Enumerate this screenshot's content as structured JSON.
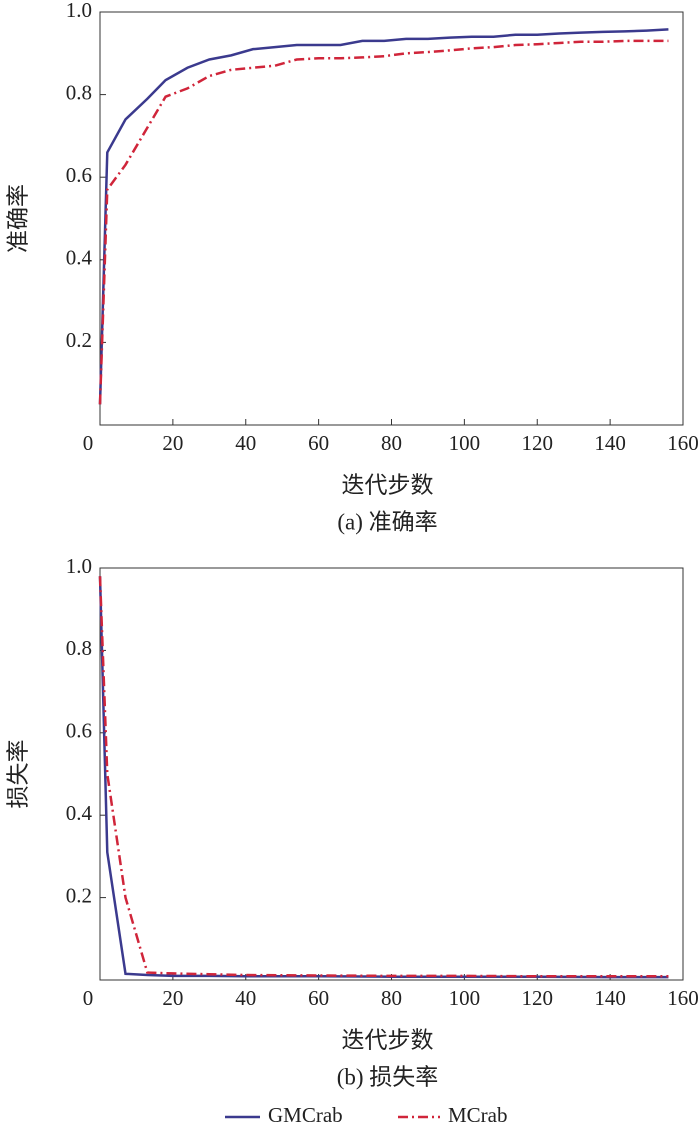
{
  "chart_data": [
    {
      "type": "line",
      "caption": "(a) 准确率",
      "xlabel": "迭代步数",
      "ylabel": "准确率",
      "x": [
        0,
        2,
        7,
        13,
        18,
        24,
        30,
        36,
        42,
        48,
        54,
        60,
        66,
        72,
        78,
        84,
        90,
        96,
        102,
        108,
        114,
        120,
        126,
        132,
        138,
        144,
        150,
        156
      ],
      "series": [
        {
          "name": "GMCrab",
          "color": "#3b3a8e",
          "linestyle": "solid",
          "values": [
            0.05,
            0.66,
            0.74,
            0.79,
            0.835,
            0.865,
            0.885,
            0.895,
            0.91,
            0.915,
            0.92,
            0.92,
            0.92,
            0.93,
            0.93,
            0.935,
            0.935,
            0.938,
            0.94,
            0.94,
            0.945,
            0.945,
            0.948,
            0.95,
            0.952,
            0.953,
            0.955,
            0.958
          ]
        },
        {
          "name": "MCrab",
          "color": "#d0253a",
          "linestyle": "dash-dot",
          "values": [
            0.05,
            0.57,
            0.63,
            0.72,
            0.795,
            0.815,
            0.845,
            0.86,
            0.865,
            0.87,
            0.885,
            0.888,
            0.888,
            0.89,
            0.893,
            0.9,
            0.903,
            0.907,
            0.912,
            0.915,
            0.92,
            0.922,
            0.925,
            0.928,
            0.928,
            0.93,
            0.93,
            0.93
          ]
        }
      ],
      "xlim": [
        0,
        160
      ],
      "xticks": [
        0,
        20,
        40,
        60,
        80,
        100,
        120,
        140,
        160
      ],
      "ylim": [
        0,
        1
      ],
      "yticks": [
        0.2,
        0.4,
        0.6,
        0.8,
        {
          "value": 1,
          "label": "1.0"
        }
      ],
      "grid": false
    },
    {
      "type": "line",
      "caption": "(b) 损失率",
      "xlabel": "迭代步数",
      "ylabel": "损失率",
      "x": [
        0,
        2,
        7,
        13,
        20,
        30,
        40,
        60,
        80,
        100,
        120,
        140,
        156
      ],
      "series": [
        {
          "name": "GMCrab",
          "color": "#3b3a8e",
          "linestyle": "solid",
          "values": [
            0.98,
            0.31,
            0.015,
            0.012,
            0.01,
            0.01,
            0.009,
            0.009,
            0.008,
            0.008,
            0.008,
            0.007,
            0.007
          ]
        },
        {
          "name": "MCrab",
          "color": "#d0253a",
          "linestyle": "dash-dot",
          "values": [
            0.98,
            0.5,
            0.2,
            0.018,
            0.016,
            0.014,
            0.012,
            0.011,
            0.01,
            0.01,
            0.009,
            0.009,
            0.009
          ]
        }
      ],
      "xlim": [
        0,
        160
      ],
      "xticks": [
        0,
        20,
        40,
        60,
        80,
        100,
        120,
        140,
        160
      ],
      "ylim": [
        0,
        1
      ],
      "yticks": [
        0.2,
        0.4,
        0.6,
        0.8,
        {
          "value": 1,
          "label": "1.0"
        }
      ],
      "grid": false
    }
  ]
}
